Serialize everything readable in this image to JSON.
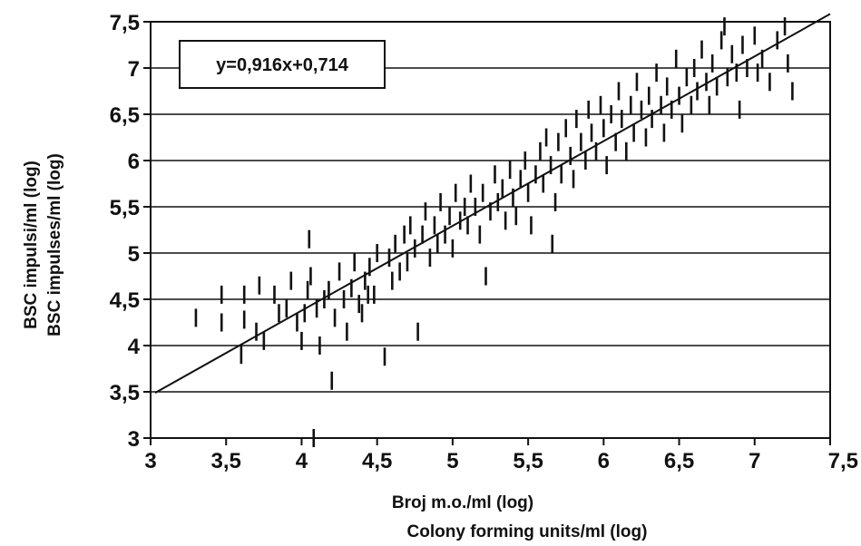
{
  "chart_data": {
    "type": "scatter",
    "xlabel": [
      "Broj m.o./ml (log)",
      "Colony forming units/ml (log)"
    ],
    "ylabel": [
      "BSC impulsi/ml (log)",
      "BSC impulses/ml (log)"
    ],
    "xlim": [
      3,
      7.5
    ],
    "ylim": [
      3,
      7.5
    ],
    "x_ticks": [
      "3",
      "3,5",
      "4",
      "4,5",
      "5",
      "5,5",
      "6",
      "6,5",
      "7",
      "7,5"
    ],
    "y_ticks": [
      "3",
      "3,5",
      "4",
      "4,5",
      "5",
      "5,5",
      "6",
      "6,5",
      "7",
      "7,5"
    ],
    "grid": "horizontal",
    "legend": "none",
    "marker": "short vertical bar",
    "fit_line": {
      "slope": 0.916,
      "intercept": 0.714,
      "x_range": [
        3.03,
        7.5
      ]
    },
    "annotation": "y=0,916x+0,714",
    "points": [
      [
        3.3,
        4.3
      ],
      [
        3.47,
        4.25
      ],
      [
        3.47,
        4.55
      ],
      [
        3.6,
        3.9
      ],
      [
        3.62,
        4.55
      ],
      [
        3.62,
        4.28
      ],
      [
        3.7,
        4.15
      ],
      [
        3.72,
        4.65
      ],
      [
        3.75,
        4.05
      ],
      [
        3.82,
        4.55
      ],
      [
        3.85,
        4.35
      ],
      [
        3.9,
        4.4
      ],
      [
        3.93,
        4.7
      ],
      [
        3.97,
        4.25
      ],
      [
        4.0,
        4.05
      ],
      [
        4.02,
        4.35
      ],
      [
        4.04,
        4.6
      ],
      [
        4.05,
        5.15
      ],
      [
        4.06,
        4.75
      ],
      [
        4.08,
        3.0
      ],
      [
        4.1,
        4.4
      ],
      [
        4.12,
        4.0
      ],
      [
        4.15,
        4.5
      ],
      [
        4.18,
        4.6
      ],
      [
        4.2,
        3.62
      ],
      [
        4.22,
        4.3
      ],
      [
        4.25,
        4.8
      ],
      [
        4.28,
        4.5
      ],
      [
        4.3,
        4.15
      ],
      [
        4.33,
        4.62
      ],
      [
        4.35,
        4.9
      ],
      [
        4.38,
        4.45
      ],
      [
        4.4,
        4.35
      ],
      [
        4.42,
        4.7
      ],
      [
        4.44,
        4.55
      ],
      [
        4.45,
        4.85
      ],
      [
        4.48,
        4.55
      ],
      [
        4.5,
        5.0
      ],
      [
        4.55,
        3.88
      ],
      [
        4.58,
        4.95
      ],
      [
        4.6,
        4.7
      ],
      [
        4.62,
        5.1
      ],
      [
        4.65,
        4.8
      ],
      [
        4.68,
        5.2
      ],
      [
        4.7,
        4.9
      ],
      [
        4.72,
        5.3
      ],
      [
        4.75,
        5.05
      ],
      [
        4.77,
        4.15
      ],
      [
        4.8,
        5.2
      ],
      [
        4.82,
        5.45
      ],
      [
        4.85,
        4.95
      ],
      [
        4.88,
        5.3
      ],
      [
        4.9,
        5.1
      ],
      [
        4.92,
        5.55
      ],
      [
        4.95,
        5.2
      ],
      [
        4.98,
        5.4
      ],
      [
        5.0,
        5.05
      ],
      [
        5.02,
        5.65
      ],
      [
        5.05,
        5.35
      ],
      [
        5.08,
        5.5
      ],
      [
        5.1,
        5.3
      ],
      [
        5.12,
        5.75
      ],
      [
        5.15,
        5.5
      ],
      [
        5.18,
        5.2
      ],
      [
        5.2,
        5.65
      ],
      [
        5.22,
        4.75
      ],
      [
        5.25,
        5.45
      ],
      [
        5.28,
        5.85
      ],
      [
        5.3,
        5.55
      ],
      [
        5.33,
        5.7
      ],
      [
        5.35,
        5.35
      ],
      [
        5.38,
        5.9
      ],
      [
        5.4,
        5.6
      ],
      [
        5.42,
        5.4
      ],
      [
        5.45,
        5.8
      ],
      [
        5.48,
        6.0
      ],
      [
        5.5,
        5.65
      ],
      [
        5.52,
        5.3
      ],
      [
        5.55,
        5.85
      ],
      [
        5.58,
        6.1
      ],
      [
        5.6,
        5.75
      ],
      [
        5.62,
        6.25
      ],
      [
        5.65,
        5.95
      ],
      [
        5.66,
        5.1
      ],
      [
        5.68,
        5.55
      ],
      [
        5.7,
        6.2
      ],
      [
        5.72,
        5.85
      ],
      [
        5.75,
        6.35
      ],
      [
        5.78,
        6.05
      ],
      [
        5.8,
        5.8
      ],
      [
        5.82,
        6.45
      ],
      [
        5.85,
        6.2
      ],
      [
        5.88,
        6.0
      ],
      [
        5.9,
        6.55
      ],
      [
        5.92,
        6.3
      ],
      [
        5.95,
        6.1
      ],
      [
        5.98,
        6.6
      ],
      [
        6.0,
        6.35
      ],
      [
        6.02,
        5.95
      ],
      [
        6.05,
        6.5
      ],
      [
        6.08,
        6.2
      ],
      [
        6.1,
        6.75
      ],
      [
        6.12,
        6.45
      ],
      [
        6.15,
        6.1
      ],
      [
        6.18,
        6.6
      ],
      [
        6.2,
        6.3
      ],
      [
        6.22,
        6.85
      ],
      [
        6.25,
        6.55
      ],
      [
        6.28,
        6.25
      ],
      [
        6.3,
        6.7
      ],
      [
        6.32,
        6.45
      ],
      [
        6.35,
        6.95
      ],
      [
        6.38,
        6.6
      ],
      [
        6.4,
        6.3
      ],
      [
        6.42,
        6.8
      ],
      [
        6.45,
        6.55
      ],
      [
        6.48,
        7.1
      ],
      [
        6.5,
        6.7
      ],
      [
        6.52,
        6.4
      ],
      [
        6.55,
        6.9
      ],
      [
        6.58,
        6.6
      ],
      [
        6.6,
        7.0
      ],
      [
        6.62,
        6.75
      ],
      [
        6.65,
        7.2
      ],
      [
        6.68,
        6.85
      ],
      [
        6.7,
        6.6
      ],
      [
        6.72,
        7.05
      ],
      [
        6.75,
        6.8
      ],
      [
        6.78,
        7.3
      ],
      [
        6.8,
        7.45
      ],
      [
        6.82,
        6.9
      ],
      [
        6.85,
        7.15
      ],
      [
        6.88,
        6.95
      ],
      [
        6.9,
        6.55
      ],
      [
        6.92,
        7.25
      ],
      [
        6.95,
        7.0
      ],
      [
        7.0,
        7.35
      ],
      [
        7.02,
        6.95
      ],
      [
        7.05,
        7.1
      ],
      [
        7.1,
        6.85
      ],
      [
        7.15,
        7.3
      ],
      [
        7.2,
        7.45
      ],
      [
        7.22,
        7.05
      ],
      [
        7.25,
        6.75
      ]
    ]
  }
}
